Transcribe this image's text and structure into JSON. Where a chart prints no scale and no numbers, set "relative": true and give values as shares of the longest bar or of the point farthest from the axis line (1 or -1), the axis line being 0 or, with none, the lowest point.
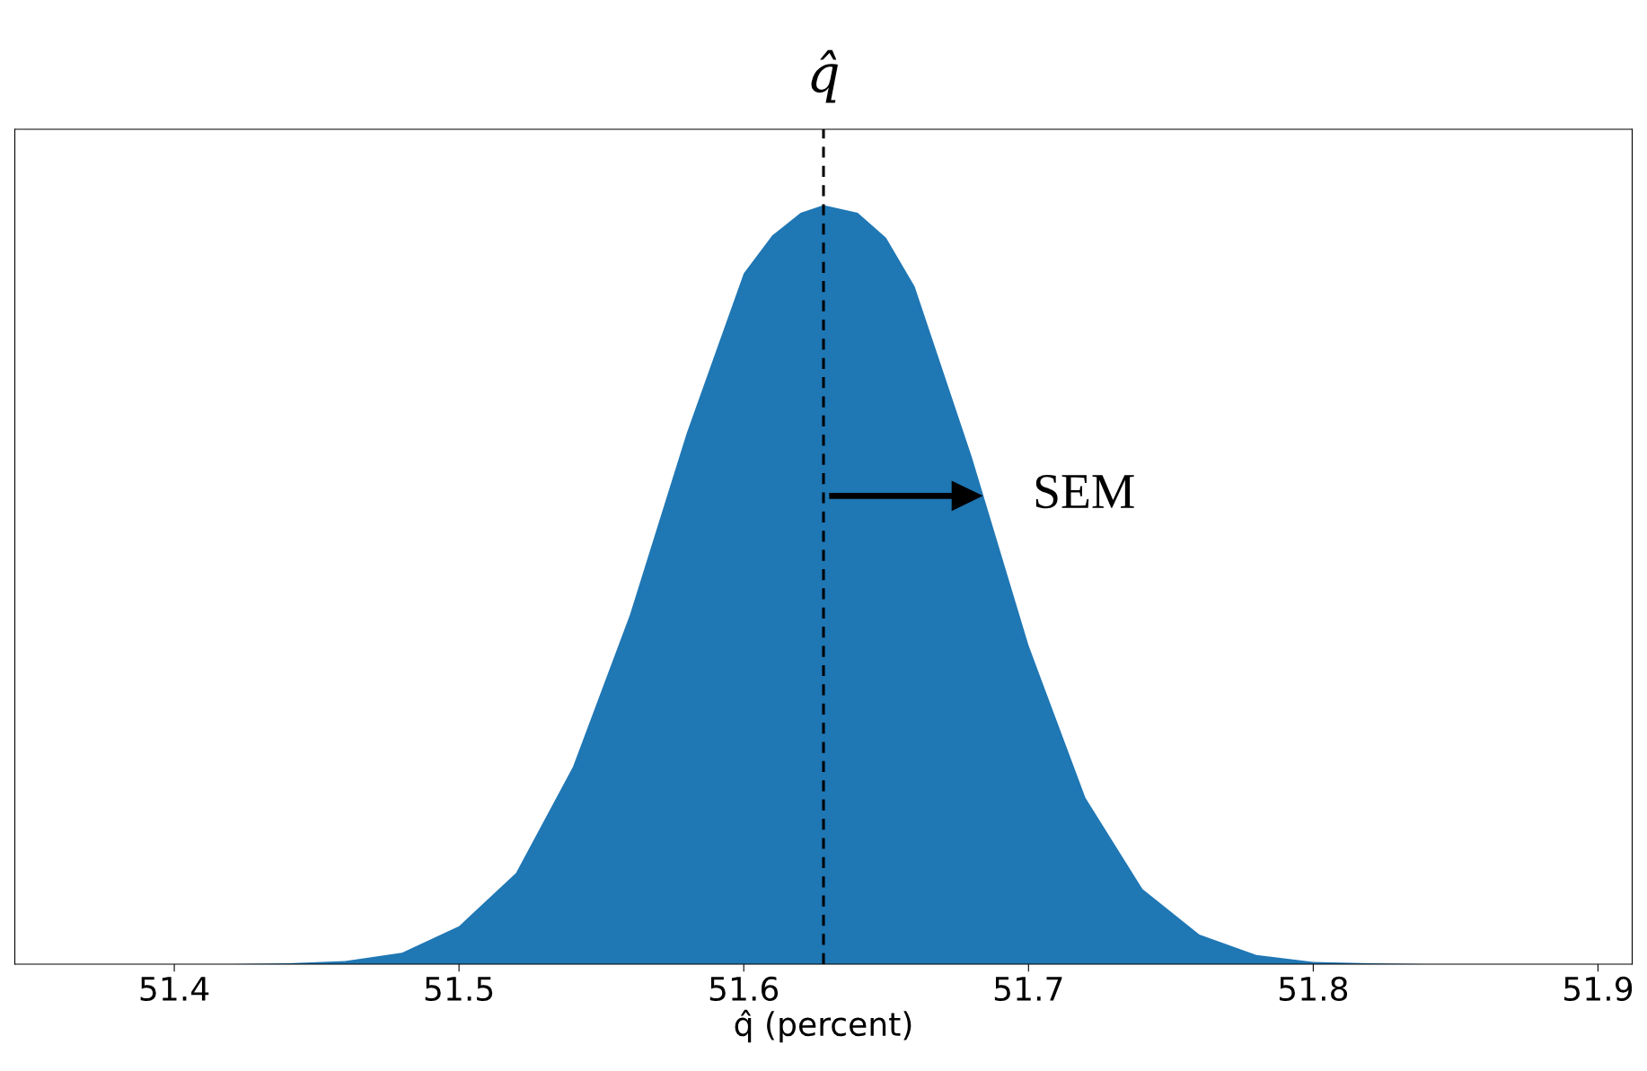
{
  "chart_data": {
    "type": "area",
    "title": "q̂",
    "xlabel": "q̂ (percent)",
    "relative": true,
    "x": [
      51.4,
      51.42,
      51.44,
      51.46,
      51.48,
      51.5,
      51.52,
      51.54,
      51.56,
      51.58,
      51.6,
      51.61,
      51.62,
      51.628,
      51.64,
      51.65,
      51.66,
      51.68,
      51.7,
      51.72,
      51.74,
      51.76,
      51.78,
      51.8,
      51.82,
      51.84,
      51.86,
      51.88,
      51.9
    ],
    "series": [
      {
        "color": "#1f77b4",
        "values": [
          0,
          0,
          0.001,
          0.004,
          0.015,
          0.05,
          0.12,
          0.26,
          0.46,
          0.7,
          0.91,
          0.96,
          0.99,
          1,
          0.99,
          0.957,
          0.893,
          0.669,
          0.42,
          0.219,
          0.099,
          0.039,
          0.012,
          0.003,
          0.001,
          0,
          0,
          0,
          0
        ]
      }
    ],
    "xlim": [
      51.344,
      51.912
    ],
    "xticks": [
      51.4,
      51.5,
      51.6,
      51.7,
      51.8,
      51.9
    ],
    "ref_lines": [
      {
        "axis": "x",
        "value": 51.628,
        "color": "#000000",
        "line_style": "dashed"
      }
    ],
    "annotations": [
      {
        "text": "SEM",
        "x": 51.684,
        "y": 0.617
      }
    ],
    "grid": false,
    "legend": false,
    "tick_labels": "x"
  }
}
